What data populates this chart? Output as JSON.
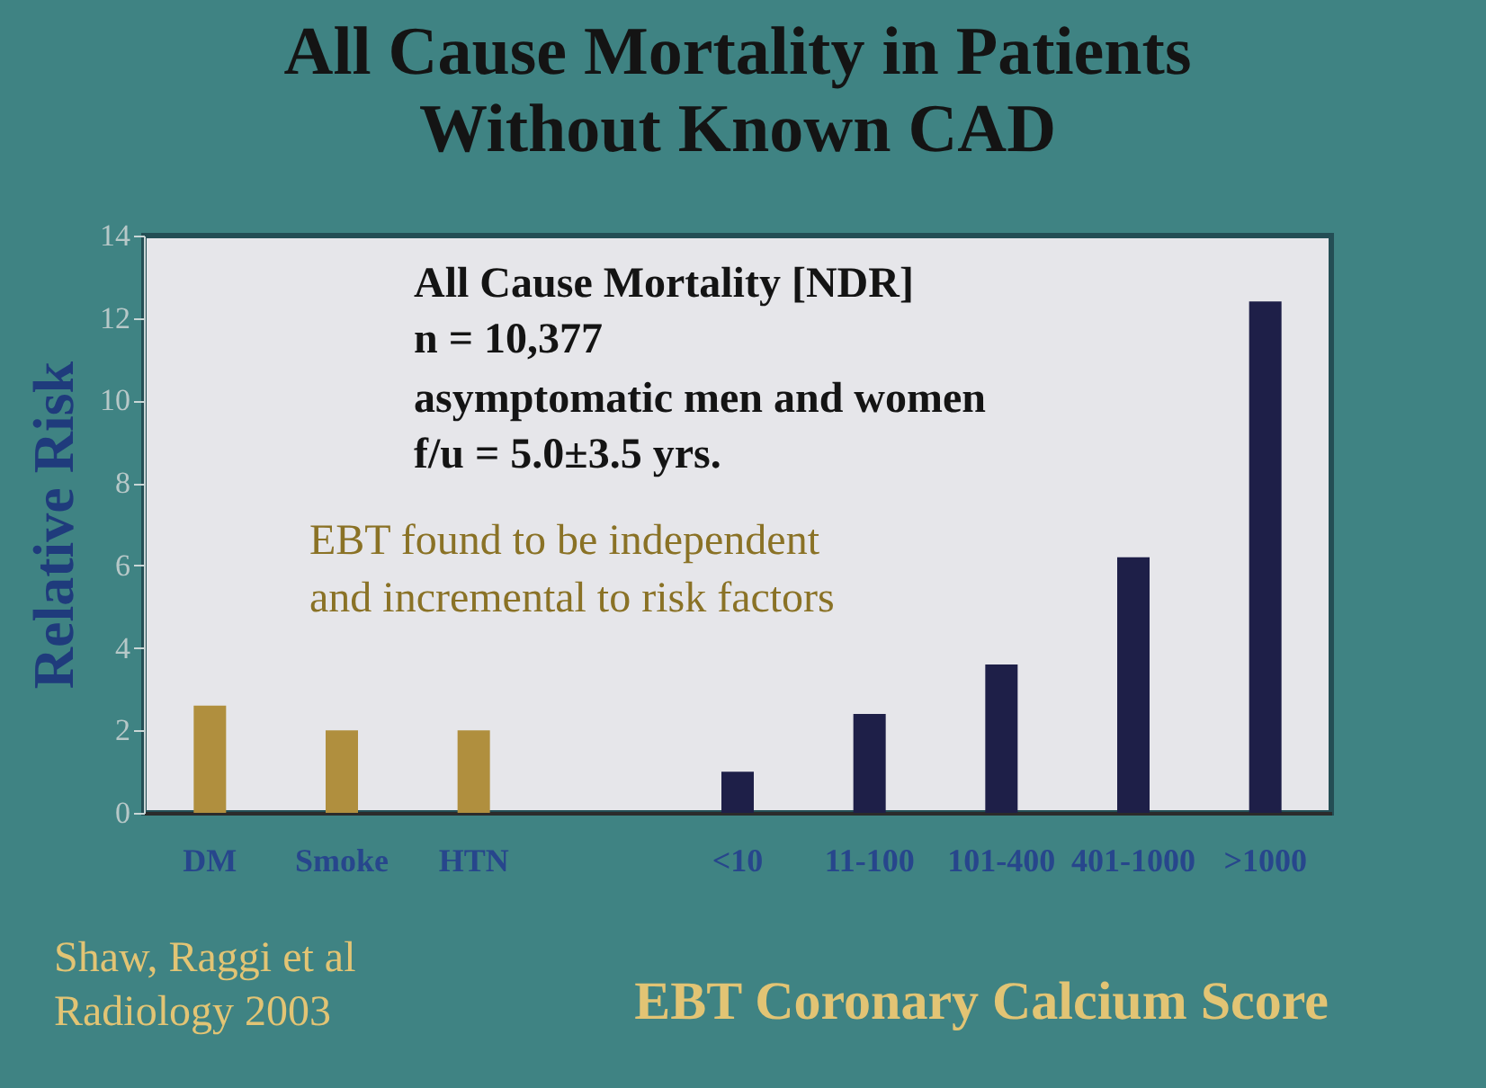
{
  "chart_data": {
    "type": "bar",
    "title": "All Cause Mortality in Patients\nWithout Known CAD",
    "categories": [
      "DM",
      "Smoke",
      "HTN",
      null,
      "<10",
      "11-100",
      "101-400",
      "401-1000",
      ">1000"
    ],
    "values": [
      2.6,
      2.0,
      2.0,
      null,
      1.0,
      2.4,
      3.6,
      6.2,
      12.4
    ],
    "colors": [
      "#b08f3e",
      "#b08f3e",
      "#b08f3e",
      null,
      "#1e1f48",
      "#1e1f48",
      "#1e1f48",
      "#1e1f48",
      "#1e1f48"
    ],
    "ylim": [
      0,
      14
    ],
    "yticks": [
      0,
      2,
      4,
      6,
      8,
      10,
      12,
      14
    ],
    "ylabel": "Relative Risk",
    "xlabel": "EBT Coronary Calcium Score",
    "annotations": [
      "All Cause Mortality [NDR]",
      "n = 10,377",
      "asymptomatic men and women",
      "f/u = 5.0±3.5 yrs.",
      "EBT found to be independent\nand incremental to risk factors",
      "Shaw, Raggi et al\nRadiology 2003"
    ]
  }
}
